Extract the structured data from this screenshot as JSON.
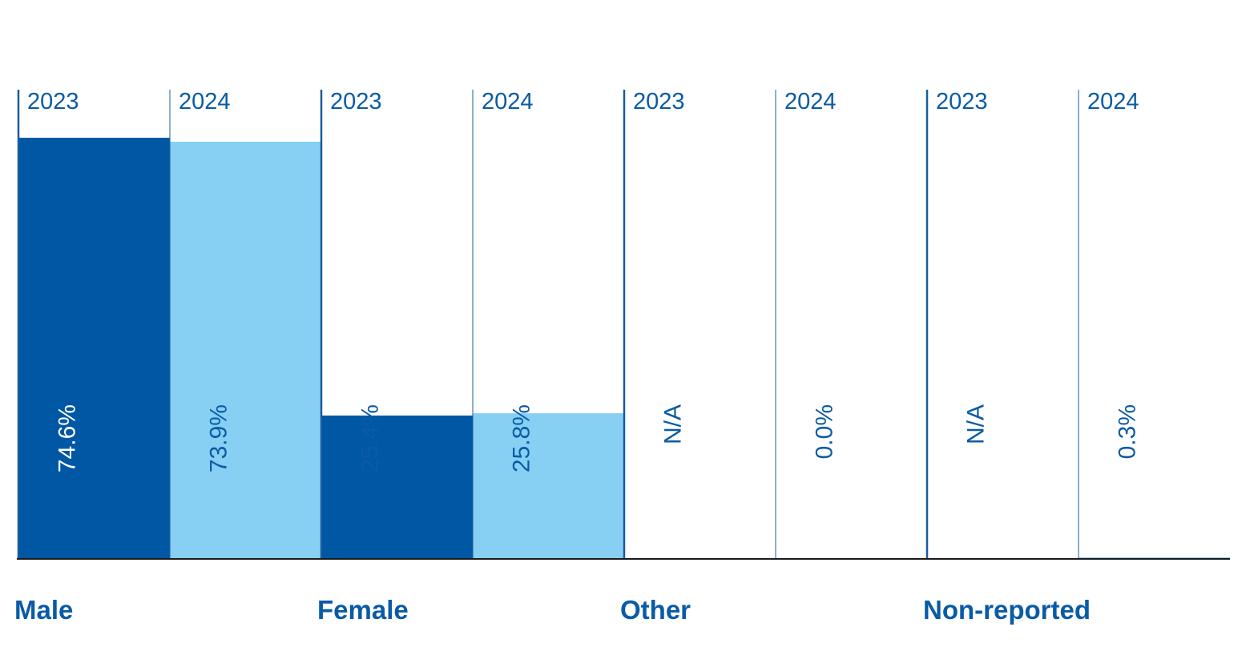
{
  "colors": {
    "series_2023": "#0057a3",
    "series_2024": "#87cff3",
    "text_on_dark": "#ffffff",
    "text_on_light": "#0a5ba5",
    "divider": "#1b5c9c",
    "baseline": "#1a1a1a"
  },
  "chart_data": {
    "type": "bar",
    "categories": [
      "Male",
      "Female",
      "Other",
      "Non-reported"
    ],
    "series": [
      {
        "name": "2023",
        "values": [
          74.6,
          25.4,
          null,
          null
        ],
        "labels": [
          "74.6%",
          "25.4%",
          "N/A",
          "N/A"
        ]
      },
      {
        "name": "2024",
        "values": [
          73.9,
          25.8,
          0.0,
          0.3
        ],
        "labels": [
          "73.9%",
          "25.8%",
          "0.0%",
          "0.3%"
        ]
      }
    ],
    "ylim": [
      0,
      100
    ],
    "grid": false,
    "legend": "none",
    "title": "",
    "xlabel": "",
    "ylabel": ""
  }
}
